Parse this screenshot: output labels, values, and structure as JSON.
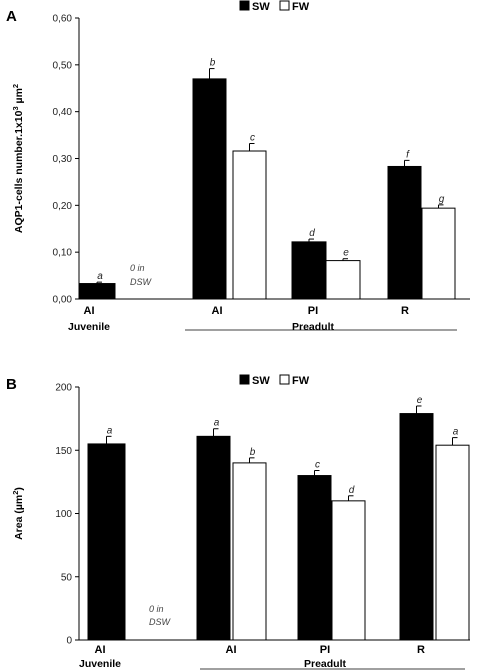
{
  "chart_data": [
    {
      "panel": "A",
      "type": "bar",
      "ylabel_main": "AQP1-cells number.1x10",
      "ylabel_exp": "3",
      "ylabel_unit": " µm",
      "ylabel_unit_exp": "2",
      "ylim": [
        0,
        0.6
      ],
      "yticks": [
        "0,00",
        "0,10",
        "0,20",
        "0,30",
        "0,40",
        "0,50",
        "0,60"
      ],
      "ytick_values": [
        0,
        0.1,
        0.2,
        0.3,
        0.4,
        0.5,
        0.6
      ],
      "legend": [
        {
          "name": "SW",
          "color": "#000000"
        },
        {
          "name": "FW",
          "color": "#ffffff"
        }
      ],
      "categories": [
        "AI",
        "AI",
        "PI",
        "R"
      ],
      "groups": [
        {
          "label": "Juvenile",
          "categories": [
            0
          ]
        },
        {
          "label": "Preadult",
          "categories": [
            1,
            2,
            3
          ]
        }
      ],
      "series": [
        {
          "name": "SW",
          "values": [
            0.033,
            0.47,
            0.122,
            0.283
          ],
          "errors": [
            0.003,
            0.022,
            0.006,
            0.013
          ],
          "sig": [
            "a",
            "b",
            "d",
            "f"
          ]
        },
        {
          "name": "FW",
          "values": [
            0.0,
            0.316,
            0.082,
            0.194
          ],
          "errors": [
            0,
            0.016,
            0.004,
            0.007
          ],
          "sig": [
            "",
            "c",
            "e",
            "g"
          ]
        }
      ],
      "missing_note": [
        "0 in",
        "DSW"
      ]
    },
    {
      "panel": "B",
      "type": "bar",
      "ylabel_main": "Area (µm",
      "ylabel_exp": "2",
      "ylabel_unit": ")",
      "ylabel_unit_exp": "",
      "ylim": [
        0,
        200
      ],
      "yticks": [
        "0",
        "50",
        "100",
        "150",
        "200"
      ],
      "ytick_values": [
        0,
        50,
        100,
        150,
        200
      ],
      "legend": [
        {
          "name": "SW",
          "color": "#000000"
        },
        {
          "name": "FW",
          "color": "#ffffff"
        }
      ],
      "categories": [
        "AI",
        "AI",
        "PI",
        "R"
      ],
      "groups": [
        {
          "label": "Juvenile",
          "categories": [
            0
          ]
        },
        {
          "label": "Preadult",
          "categories": [
            1,
            2,
            3
          ]
        }
      ],
      "series": [
        {
          "name": "SW",
          "values": [
            155,
            161,
            130,
            179
          ],
          "errors": [
            6,
            6,
            4,
            6
          ],
          "sig": [
            "a",
            "a",
            "c",
            "e"
          ]
        },
        {
          "name": "FW",
          "values": [
            0,
            140,
            110,
            154
          ],
          "errors": [
            0,
            4,
            4,
            6
          ],
          "sig": [
            "",
            "b",
            "d",
            "a"
          ]
        }
      ],
      "missing_note": [
        "0 in",
        "DSW"
      ]
    }
  ]
}
